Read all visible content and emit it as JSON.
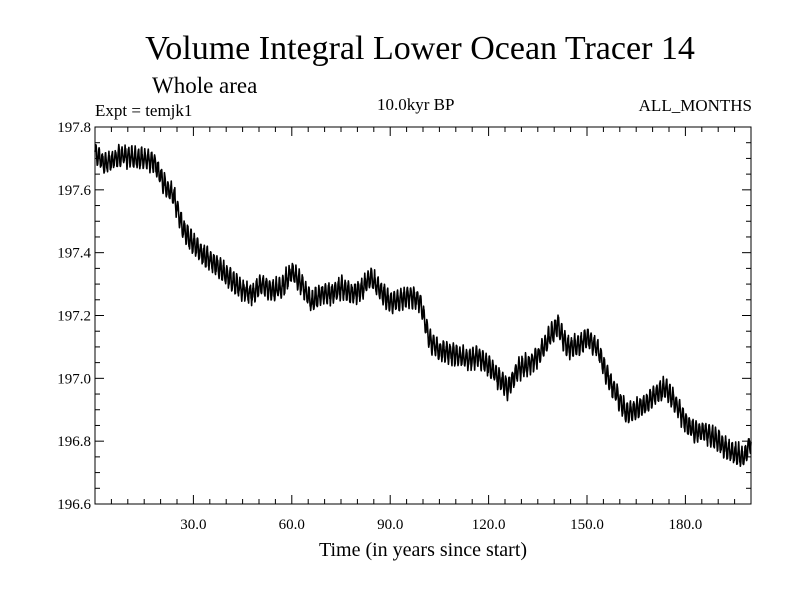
{
  "header": {
    "title": "Volume Integral Lower Ocean Tracer 14",
    "subtitle": "Whole area",
    "expt": "Expt = temjk1",
    "period": "10.0kyr BP",
    "months": "ALL_MONTHS"
  },
  "chart_data": {
    "type": "line",
    "title": "Volume Integral Lower Ocean Tracer 14",
    "subtitle": "Whole area",
    "xlabel": "Time (in years since start)",
    "ylabel": "",
    "xlim": [
      0,
      200
    ],
    "ylim": [
      196.6,
      197.8
    ],
    "xticks": [
      30,
      60,
      90,
      120,
      150,
      180
    ],
    "xtick_labels": [
      "30.0",
      "60.0",
      "90.0",
      "120.0",
      "150.0",
      "180.0"
    ],
    "yticks": [
      196.6,
      196.8,
      197.0,
      197.2,
      197.4,
      197.6,
      197.8
    ],
    "ytick_labels": [
      "196.6",
      "196.8",
      "197.0",
      "197.2",
      "197.4",
      "197.6",
      "197.8"
    ],
    "grid": false,
    "series": [
      {
        "name": "Tracer 14",
        "color": "#000000",
        "seasonal_amplitude": 0.03,
        "x": [
          0,
          3,
          6,
          9,
          12,
          15,
          18,
          21,
          24,
          27,
          30,
          33,
          36,
          39,
          42,
          45,
          48,
          51,
          54,
          57,
          60,
          63,
          66,
          69,
          72,
          75,
          78,
          81,
          84,
          87,
          90,
          93,
          96,
          99,
          102,
          105,
          108,
          111,
          114,
          117,
          120,
          123,
          126,
          129,
          132,
          135,
          138,
          141,
          144,
          147,
          150,
          153,
          156,
          159,
          162,
          165,
          168,
          171,
          174,
          177,
          180,
          183,
          186,
          189,
          192,
          195,
          198,
          200
        ],
        "y": [
          197.72,
          197.68,
          197.7,
          197.71,
          197.7,
          197.7,
          197.69,
          197.62,
          197.58,
          197.47,
          197.43,
          197.39,
          197.37,
          197.34,
          197.31,
          197.28,
          197.27,
          197.3,
          197.28,
          197.29,
          197.34,
          197.3,
          197.24,
          197.27,
          197.27,
          197.29,
          197.27,
          197.28,
          197.32,
          197.28,
          197.24,
          197.25,
          197.26,
          197.25,
          197.12,
          197.09,
          197.08,
          197.07,
          197.06,
          197.07,
          197.04,
          197.0,
          196.97,
          197.03,
          197.04,
          197.07,
          197.12,
          197.17,
          197.1,
          197.1,
          197.13,
          197.1,
          197.01,
          196.95,
          196.89,
          196.9,
          196.92,
          196.95,
          196.97,
          196.92,
          196.86,
          196.83,
          196.83,
          196.81,
          196.78,
          196.76,
          196.75,
          196.8
        ]
      }
    ]
  }
}
